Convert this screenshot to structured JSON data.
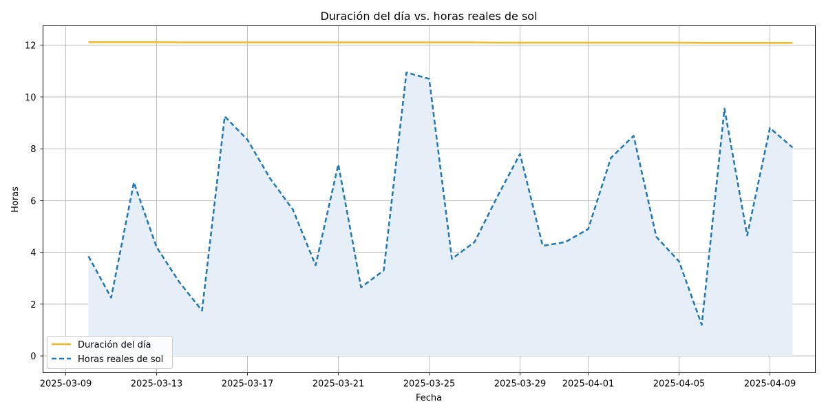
{
  "chart_data": {
    "type": "line",
    "title": "Duración del día vs. horas reales de sol",
    "xlabel": "Fecha",
    "ylabel": "Horas",
    "x": [
      "2025-03-10",
      "2025-03-11",
      "2025-03-12",
      "2025-03-13",
      "2025-03-14",
      "2025-03-15",
      "2025-03-16",
      "2025-03-17",
      "2025-03-18",
      "2025-03-19",
      "2025-03-20",
      "2025-03-21",
      "2025-03-22",
      "2025-03-23",
      "2025-03-24",
      "2025-03-25",
      "2025-03-26",
      "2025-03-27",
      "2025-03-28",
      "2025-03-29",
      "2025-03-30",
      "2025-03-31",
      "2025-04-01",
      "2025-04-02",
      "2025-04-03",
      "2025-04-04",
      "2025-04-05",
      "2025-04-06",
      "2025-04-07",
      "2025-04-08",
      "2025-04-09",
      "2025-04-10"
    ],
    "series": [
      {
        "name": "Duración del día",
        "color": "#f5b722",
        "style": "solid",
        "values": [
          12.12,
          12.12,
          12.12,
          12.12,
          12.11,
          12.11,
          12.11,
          12.11,
          12.11,
          12.11,
          12.11,
          12.11,
          12.11,
          12.11,
          12.11,
          12.11,
          12.11,
          12.11,
          12.1,
          12.1,
          12.1,
          12.1,
          12.1,
          12.1,
          12.1,
          12.1,
          12.1,
          12.09,
          12.09,
          12.09,
          12.09,
          12.09
        ]
      },
      {
        "name": "Horas reales de sol",
        "color": "#1f77b4",
        "style": "dashed",
        "fill": "#e6eff7",
        "values": [
          3.85,
          2.25,
          6.7,
          4.2,
          2.85,
          1.75,
          9.25,
          8.35,
          6.85,
          5.65,
          3.5,
          7.4,
          2.65,
          3.3,
          10.95,
          10.7,
          3.75,
          4.4,
          6.15,
          7.8,
          4.25,
          4.4,
          4.9,
          7.65,
          8.5,
          4.6,
          3.65,
          1.2,
          9.55,
          4.65,
          8.8,
          8.05
        ]
      }
    ],
    "x_ticks": [
      "2025-03-09",
      "2025-03-13",
      "2025-03-17",
      "2025-03-21",
      "2025-03-25",
      "2025-03-29",
      "2025-04-01",
      "2025-04-05",
      "2025-04-09"
    ],
    "y_ticks": [
      "0",
      "2",
      "4",
      "6",
      "8",
      "10",
      "12"
    ],
    "xlim": [
      "2025-03-08",
      "2025-04-11"
    ],
    "ylim": [
      -0.65,
      12.75
    ],
    "grid": true,
    "legend_position": "lower-left"
  }
}
